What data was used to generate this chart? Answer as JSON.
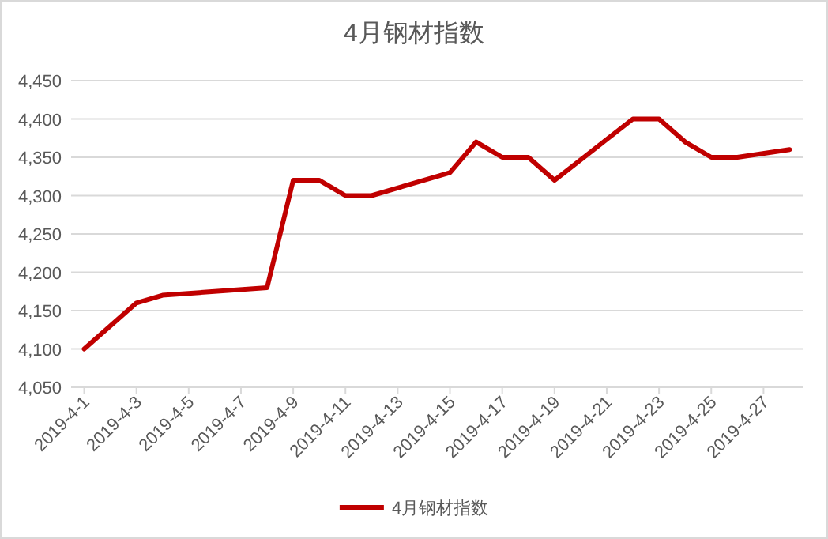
{
  "chart_data": {
    "type": "line",
    "title": "4月钢材指数",
    "x": [
      "2019-04-01",
      "2019-04-03",
      "2019-04-04",
      "2019-04-08",
      "2019-04-09",
      "2019-04-10",
      "2019-04-11",
      "2019-04-12",
      "2019-04-15",
      "2019-04-16",
      "2019-04-17",
      "2019-04-18",
      "2019-04-19",
      "2019-04-22",
      "2019-04-23",
      "2019-04-24",
      "2019-04-25",
      "2019-04-26",
      "2019-04-28"
    ],
    "series": [
      {
        "name": "4月钢材指数",
        "color": "#c00000",
        "values": [
          4100,
          4160,
          4170,
          4180,
          4320,
          4320,
          4300,
          4300,
          4330,
          4370,
          4350,
          4350,
          4320,
          4400,
          4400,
          4370,
          4350,
          4350,
          4360
        ]
      }
    ],
    "xlim": [
      "2019-03-31T12:00",
      "2019-04-28T12:00"
    ],
    "xticks": [
      {
        "value": "2019-04-01",
        "label": "2019-4-1"
      },
      {
        "value": "2019-04-03",
        "label": "2019-4-3"
      },
      {
        "value": "2019-04-05",
        "label": "2019-4-5"
      },
      {
        "value": "2019-04-07",
        "label": "2019-4-7"
      },
      {
        "value": "2019-04-09",
        "label": "2019-4-9"
      },
      {
        "value": "2019-04-11",
        "label": "2019-4-11"
      },
      {
        "value": "2019-04-13",
        "label": "2019-4-13"
      },
      {
        "value": "2019-04-15",
        "label": "2019-4-15"
      },
      {
        "value": "2019-04-17",
        "label": "2019-4-17"
      },
      {
        "value": "2019-04-19",
        "label": "2019-4-19"
      },
      {
        "value": "2019-04-21",
        "label": "2019-4-21"
      },
      {
        "value": "2019-04-23",
        "label": "2019-4-23"
      },
      {
        "value": "2019-04-25",
        "label": "2019-4-25"
      },
      {
        "value": "2019-04-27",
        "label": "2019-4-27"
      }
    ],
    "ylim": [
      4050,
      4450
    ],
    "yticks": [
      {
        "value": 4050,
        "label": "4,050"
      },
      {
        "value": 4100,
        "label": "4,100"
      },
      {
        "value": 4150,
        "label": "4,150"
      },
      {
        "value": 4200,
        "label": "4,200"
      },
      {
        "value": 4250,
        "label": "4,250"
      },
      {
        "value": 4300,
        "label": "4,300"
      },
      {
        "value": 4350,
        "label": "4,350"
      },
      {
        "value": 4400,
        "label": "4,400"
      },
      {
        "value": 4450,
        "label": "4,450"
      }
    ],
    "grid": "y",
    "legend": "bottom",
    "marker": "none",
    "line_style": "solid"
  }
}
